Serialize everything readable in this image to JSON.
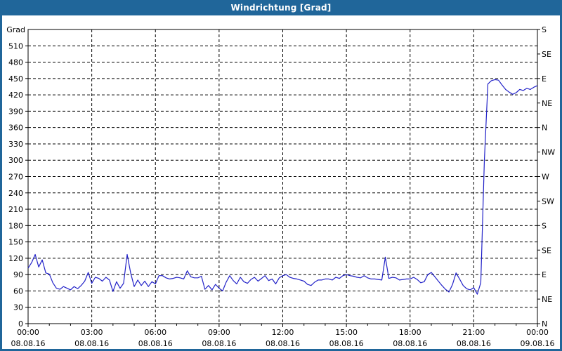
{
  "window": {
    "title": "Windrichtung [Grad]"
  },
  "colors": {
    "titlebar_bg": "#20669a",
    "frame_border": "#20669a",
    "plot_background": "#ffffff",
    "grid_color": "#000000",
    "line_color": "#2222c8",
    "text_color": "#000000"
  },
  "chart_data": {
    "type": "line",
    "title": "Windrichtung [Grad]",
    "grid": "dashed, on every y step of 30 Grad and every 3h x step",
    "ylim": [
      0,
      540
    ],
    "xlim_hours": [
      0,
      24
    ],
    "y_axis_left": {
      "unit_label": "Grad",
      "ticks": [
        0,
        30,
        60,
        90,
        120,
        150,
        180,
        210,
        240,
        270,
        300,
        330,
        360,
        390,
        420,
        450,
        480,
        510
      ]
    },
    "y_axis_right": {
      "ticks": [
        {
          "grad": 0,
          "label": "N"
        },
        {
          "grad": 45,
          "label": "NE"
        },
        {
          "grad": 90,
          "label": "E"
        },
        {
          "grad": 135,
          "label": "SE"
        },
        {
          "grad": 180,
          "label": "S"
        },
        {
          "grad": 225,
          "label": "SW"
        },
        {
          "grad": 270,
          "label": "W"
        },
        {
          "grad": 315,
          "label": "NW"
        },
        {
          "grad": 360,
          "label": "N"
        },
        {
          "grad": 405,
          "label": "NE"
        },
        {
          "grad": 450,
          "label": "E"
        },
        {
          "grad": 495,
          "label": "SE"
        },
        {
          "grad": 540,
          "label": "S"
        }
      ]
    },
    "x_axis": {
      "minor_tick_hours": 1,
      "major_ticks": [
        {
          "hours": 0,
          "time": "00:00",
          "date": "08.08.16"
        },
        {
          "hours": 3,
          "time": "03:00",
          "date": "08.08.16"
        },
        {
          "hours": 6,
          "time": "06:00",
          "date": "08.08.16"
        },
        {
          "hours": 9,
          "time": "09:00",
          "date": "08.08.16"
        },
        {
          "hours": 12,
          "time": "12:00",
          "date": "08.08.16"
        },
        {
          "hours": 15,
          "time": "15:00",
          "date": "08.08.16"
        },
        {
          "hours": 18,
          "time": "18:00",
          "date": "08.08.16"
        },
        {
          "hours": 21,
          "time": "21:00",
          "date": "08.08.16"
        },
        {
          "hours": 24,
          "time": "00:00",
          "date": "09.08.16"
        }
      ]
    },
    "series": [
      {
        "name": "Windrichtung",
        "color": "#2222c8",
        "x_unit": "minutes_since_midnight",
        "y_unit": "Grad",
        "points": [
          [
            0,
            102
          ],
          [
            10,
            112
          ],
          [
            20,
            127
          ],
          [
            30,
            104
          ],
          [
            40,
            117
          ],
          [
            50,
            93
          ],
          [
            60,
            91
          ],
          [
            70,
            75
          ],
          [
            80,
            65
          ],
          [
            90,
            63
          ],
          [
            100,
            68
          ],
          [
            110,
            65
          ],
          [
            120,
            62
          ],
          [
            130,
            68
          ],
          [
            140,
            64
          ],
          [
            150,
            70
          ],
          [
            160,
            78
          ],
          [
            170,
            94
          ],
          [
            180,
            74
          ],
          [
            190,
            85
          ],
          [
            200,
            83
          ],
          [
            210,
            78
          ],
          [
            220,
            85
          ],
          [
            230,
            80
          ],
          [
            240,
            59
          ],
          [
            250,
            77
          ],
          [
            260,
            65
          ],
          [
            270,
            74
          ],
          [
            280,
            127
          ],
          [
            290,
            93
          ],
          [
            300,
            68
          ],
          [
            310,
            80
          ],
          [
            320,
            70
          ],
          [
            330,
            78
          ],
          [
            340,
            68
          ],
          [
            350,
            77
          ],
          [
            360,
            73
          ],
          [
            370,
            88
          ],
          [
            380,
            88
          ],
          [
            390,
            84
          ],
          [
            400,
            82
          ],
          [
            410,
            83
          ],
          [
            420,
            85
          ],
          [
            430,
            84
          ],
          [
            440,
            82
          ],
          [
            450,
            97
          ],
          [
            460,
            86
          ],
          [
            470,
            84
          ],
          [
            480,
            84
          ],
          [
            490,
            87
          ],
          [
            500,
            63
          ],
          [
            510,
            70
          ],
          [
            520,
            62
          ],
          [
            530,
            72
          ],
          [
            540,
            65
          ],
          [
            550,
            60
          ],
          [
            560,
            76
          ],
          [
            570,
            88
          ],
          [
            580,
            79
          ],
          [
            590,
            73
          ],
          [
            600,
            85
          ],
          [
            610,
            77
          ],
          [
            620,
            74
          ],
          [
            630,
            81
          ],
          [
            640,
            85
          ],
          [
            650,
            78
          ],
          [
            660,
            83
          ],
          [
            670,
            88
          ],
          [
            680,
            79
          ],
          [
            690,
            82
          ],
          [
            700,
            73
          ],
          [
            710,
            84
          ],
          [
            720,
            88
          ],
          [
            730,
            90
          ],
          [
            740,
            85
          ],
          [
            750,
            83
          ],
          [
            760,
            82
          ],
          [
            770,
            80
          ],
          [
            780,
            78
          ],
          [
            790,
            72
          ],
          [
            800,
            70
          ],
          [
            810,
            76
          ],
          [
            820,
            80
          ],
          [
            830,
            80
          ],
          [
            840,
            82
          ],
          [
            850,
            82
          ],
          [
            860,
            80
          ],
          [
            870,
            85
          ],
          [
            880,
            83
          ],
          [
            890,
            88
          ],
          [
            900,
            90
          ],
          [
            910,
            88
          ],
          [
            920,
            87
          ],
          [
            930,
            85
          ],
          [
            940,
            84
          ],
          [
            950,
            88
          ],
          [
            960,
            84
          ],
          [
            970,
            82
          ],
          [
            980,
            82
          ],
          [
            990,
            81
          ],
          [
            1000,
            80
          ],
          [
            1010,
            122
          ],
          [
            1020,
            83
          ],
          [
            1030,
            85
          ],
          [
            1040,
            84
          ],
          [
            1050,
            80
          ],
          [
            1060,
            81
          ],
          [
            1070,
            82
          ],
          [
            1080,
            82
          ],
          [
            1090,
            85
          ],
          [
            1100,
            81
          ],
          [
            1110,
            75
          ],
          [
            1120,
            77
          ],
          [
            1130,
            90
          ],
          [
            1140,
            94
          ],
          [
            1150,
            86
          ],
          [
            1160,
            78
          ],
          [
            1170,
            70
          ],
          [
            1180,
            63
          ],
          [
            1190,
            58
          ],
          [
            1200,
            72
          ],
          [
            1210,
            93
          ],
          [
            1220,
            82
          ],
          [
            1230,
            70
          ],
          [
            1240,
            64
          ],
          [
            1250,
            62
          ],
          [
            1260,
            66
          ],
          [
            1270,
            54
          ],
          [
            1280,
            75
          ],
          [
            1290,
            300
          ],
          [
            1300,
            440
          ],
          [
            1310,
            446
          ],
          [
            1320,
            448
          ],
          [
            1330,
            447
          ],
          [
            1340,
            438
          ],
          [
            1350,
            430
          ],
          [
            1360,
            425
          ],
          [
            1370,
            421
          ],
          [
            1380,
            424
          ],
          [
            1390,
            430
          ],
          [
            1400,
            428
          ],
          [
            1410,
            432
          ],
          [
            1420,
            430
          ],
          [
            1430,
            434
          ],
          [
            1440,
            437
          ]
        ]
      }
    ]
  }
}
